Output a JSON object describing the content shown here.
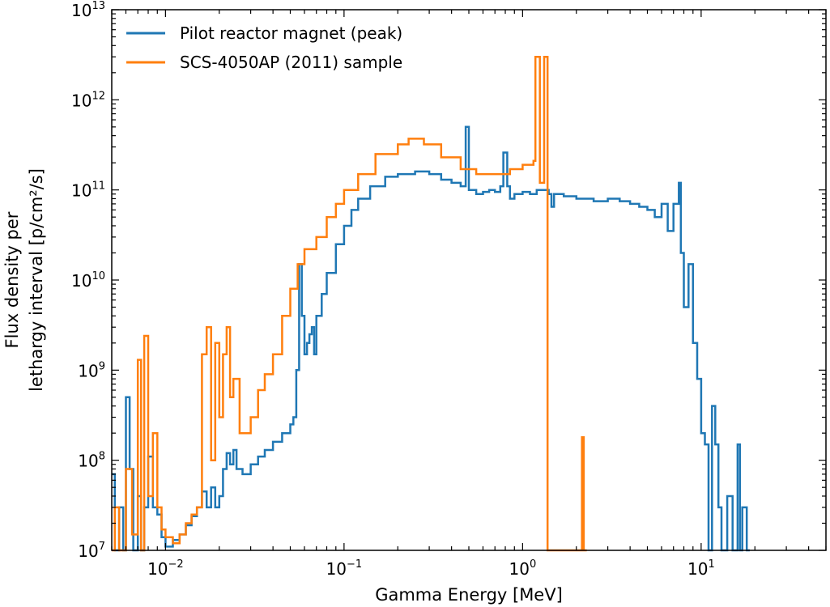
{
  "chart_data": {
    "type": "line",
    "xlabel": "Gamma Energy [MeV]",
    "ylabel_line1": "Flux density per",
    "ylabel_line2": "lethargy interval [p/cm²/s]",
    "xscale": "log",
    "yscale": "log",
    "xlim": [
      0.005,
      50
    ],
    "ylim": [
      10000000.0,
      10000000000000.0
    ],
    "grid": false,
    "legend_position": "top-left",
    "x_ticks": [
      {
        "value": 0.01,
        "base": "10",
        "exp": "−2"
      },
      {
        "value": 0.1,
        "base": "10",
        "exp": "−1"
      },
      {
        "value": 1,
        "base": "10",
        "exp": "0"
      },
      {
        "value": 10,
        "base": "10",
        "exp": "1"
      }
    ],
    "y_ticks": [
      {
        "value": 10000000.0,
        "base": "10",
        "exp": "7"
      },
      {
        "value": 100000000.0,
        "base": "10",
        "exp": "8"
      },
      {
        "value": 1000000000.0,
        "base": "10",
        "exp": "9"
      },
      {
        "value": 10000000000.0,
        "base": "10",
        "exp": "10"
      },
      {
        "value": 100000000000.0,
        "base": "10",
        "exp": "11"
      },
      {
        "value": 1000000000000.0,
        "base": "10",
        "exp": "12"
      },
      {
        "value": 10000000000000.0,
        "base": "10",
        "exp": "13"
      }
    ],
    "series": [
      {
        "name": "Pilot reactor magnet (peak)",
        "color": "#1f77b4",
        "points": [
          [
            0.005,
            70000000.0
          ],
          [
            0.0052,
            10000000.0
          ],
          [
            0.0055,
            30000000.0
          ],
          [
            0.0058,
            10000000.0
          ],
          [
            0.006,
            500000000.0
          ],
          [
            0.0063,
            80000000.0
          ],
          [
            0.0066,
            10000000.0
          ],
          [
            0.007,
            40000000.0
          ],
          [
            0.0073,
            10000000.0
          ],
          [
            0.0076,
            30000000.0
          ],
          [
            0.008,
            110000000.0
          ],
          [
            0.0085,
            30000000.0
          ],
          [
            0.009,
            25000000.0
          ],
          [
            0.0095,
            14000000.0
          ],
          [
            0.01,
            11000000.0
          ],
          [
            0.011,
            13000000.0
          ],
          [
            0.012,
            15000000.0
          ],
          [
            0.013,
            19000000.0
          ],
          [
            0.014,
            24000000.0
          ],
          [
            0.015,
            30000000.0
          ],
          [
            0.016,
            45000000.0
          ],
          [
            0.017,
            30000000.0
          ],
          [
            0.018,
            50000000.0
          ],
          [
            0.019,
            30000000.0
          ],
          [
            0.02,
            40000000.0
          ],
          [
            0.021,
            80000000.0
          ],
          [
            0.022,
            120000000.0
          ],
          [
            0.023,
            90000000.0
          ],
          [
            0.024,
            130000000.0
          ],
          [
            0.025,
            80000000.0
          ],
          [
            0.027,
            70000000.0
          ],
          [
            0.03,
            90000000.0
          ],
          [
            0.033,
            110000000.0
          ],
          [
            0.036,
            130000000.0
          ],
          [
            0.04,
            160000000.0
          ],
          [
            0.045,
            200000000.0
          ],
          [
            0.05,
            250000000.0
          ],
          [
            0.052,
            300000000.0
          ],
          [
            0.054,
            1000000000.0
          ],
          [
            0.056,
            15000000000.0
          ],
          [
            0.058,
            4000000000.0
          ],
          [
            0.06,
            1500000000.0
          ],
          [
            0.062,
            2000000000.0
          ],
          [
            0.064,
            2500000000.0
          ],
          [
            0.066,
            3000000000.0
          ],
          [
            0.068,
            1500000000.0
          ],
          [
            0.07,
            4000000000.0
          ],
          [
            0.075,
            7000000000.0
          ],
          [
            0.08,
            12000000000.0
          ],
          [
            0.09,
            25000000000.0
          ],
          [
            0.1,
            40000000000.0
          ],
          [
            0.11,
            60000000000.0
          ],
          [
            0.12,
            80000000000.0
          ],
          [
            0.14,
            110000000000.0
          ],
          [
            0.17,
            140000000000.0
          ],
          [
            0.2,
            150000000000.0
          ],
          [
            0.25,
            160000000000.0
          ],
          [
            0.3,
            150000000000.0
          ],
          [
            0.35,
            130000000000.0
          ],
          [
            0.4,
            120000000000.0
          ],
          [
            0.45,
            110000000000.0
          ],
          [
            0.48,
            500000000000.0
          ],
          [
            0.5,
            100000000000.0
          ],
          [
            0.55,
            90000000000.0
          ],
          [
            0.6,
            95000000000.0
          ],
          [
            0.65,
            100000000000.0
          ],
          [
            0.7,
            95000000000.0
          ],
          [
            0.75,
            110000000000.0
          ],
          [
            0.78,
            260000000000.0
          ],
          [
            0.82,
            110000000000.0
          ],
          [
            0.85,
            80000000000.0
          ],
          [
            0.9,
            90000000000.0
          ],
          [
            1.0,
            95000000000.0
          ],
          [
            1.1,
            90000000000.0
          ],
          [
            1.2,
            100000000000.0
          ],
          [
            1.3,
            100000000000.0
          ],
          [
            1.4,
            90000000000.0
          ],
          [
            1.45,
            65000000000.0
          ],
          [
            1.5,
            90000000000.0
          ],
          [
            1.7,
            85000000000.0
          ],
          [
            2.0,
            80000000000.0
          ],
          [
            2.5,
            75000000000.0
          ],
          [
            3.0,
            80000000000.0
          ],
          [
            3.5,
            75000000000.0
          ],
          [
            4.0,
            70000000000.0
          ],
          [
            4.5,
            65000000000.0
          ],
          [
            5.0,
            60000000000.0
          ],
          [
            5.5,
            50000000000.0
          ],
          [
            6.0,
            70000000000.0
          ],
          [
            6.5,
            35000000000.0
          ],
          [
            7.0,
            70000000000.0
          ],
          [
            7.5,
            120000000000.0
          ],
          [
            7.7,
            20000000000.0
          ],
          [
            8.0,
            5000000000.0
          ],
          [
            8.5,
            15000000000.0
          ],
          [
            9.0,
            2000000000.0
          ],
          [
            9.5,
            800000000.0
          ],
          [
            10.0,
            200000000.0
          ],
          [
            10.5,
            150000000.0
          ],
          [
            11.0,
            10000000.0
          ],
          [
            11.5,
            400000000.0
          ],
          [
            12.0,
            150000000.0
          ],
          [
            12.5,
            30000000.0
          ],
          [
            13.0,
            10000000.0
          ],
          [
            14.0,
            40000000.0
          ],
          [
            15.0,
            10000000.0
          ],
          [
            16.0,
            150000000.0
          ],
          [
            16.5,
            10000000.0
          ],
          [
            17.0,
            30000000.0
          ],
          [
            18.0,
            10000000.0
          ]
        ]
      },
      {
        "name": "SCS-4050AP (2011) sample",
        "color": "#ff7f0e",
        "points": [
          [
            0.005,
            10000000.0
          ],
          [
            0.0052,
            30000000.0
          ],
          [
            0.0055,
            10000000.0
          ],
          [
            0.006,
            80000000.0
          ],
          [
            0.0065,
            15000000.0
          ],
          [
            0.007,
            1300000000.0
          ],
          [
            0.0073,
            10000000.0
          ],
          [
            0.0076,
            2400000000.0
          ],
          [
            0.008,
            40000000.0
          ],
          [
            0.0085,
            200000000.0
          ],
          [
            0.009,
            30000000.0
          ],
          [
            0.0095,
            17000000.0
          ],
          [
            0.01,
            14000000.0
          ],
          [
            0.011,
            12000000.0
          ],
          [
            0.012,
            15000000.0
          ],
          [
            0.013,
            20000000.0
          ],
          [
            0.014,
            25000000.0
          ],
          [
            0.015,
            30000000.0
          ],
          [
            0.016,
            1500000000.0
          ],
          [
            0.017,
            3000000000.0
          ],
          [
            0.018,
            100000000.0
          ],
          [
            0.019,
            2000000000.0
          ],
          [
            0.02,
            300000000.0
          ],
          [
            0.021,
            1500000000.0
          ],
          [
            0.022,
            3000000000.0
          ],
          [
            0.023,
            500000000.0
          ],
          [
            0.024,
            800000000.0
          ],
          [
            0.026,
            200000000.0
          ],
          [
            0.03,
            300000000.0
          ],
          [
            0.033,
            600000000.0
          ],
          [
            0.036,
            900000000.0
          ],
          [
            0.04,
            1500000000.0
          ],
          [
            0.045,
            4000000000.0
          ],
          [
            0.05,
            8000000000.0
          ],
          [
            0.055,
            15000000000.0
          ],
          [
            0.06,
            22000000000.0
          ],
          [
            0.07,
            30000000000.0
          ],
          [
            0.08,
            50000000000.0
          ],
          [
            0.09,
            70000000000.0
          ],
          [
            0.1,
            100000000000.0
          ],
          [
            0.12,
            150000000000.0
          ],
          [
            0.15,
            250000000000.0
          ],
          [
            0.2,
            320000000000.0
          ],
          [
            0.23,
            370000000000.0
          ],
          [
            0.28,
            320000000000.0
          ],
          [
            0.35,
            230000000000.0
          ],
          [
            0.45,
            170000000000.0
          ],
          [
            0.55,
            150000000000.0
          ],
          [
            0.7,
            150000000000.0
          ],
          [
            0.85,
            170000000000.0
          ],
          [
            1.0,
            190000000000.0
          ],
          [
            1.15,
            210000000000.0
          ],
          [
            1.18,
            3000000000000.0
          ],
          [
            1.25,
            120000000000.0
          ],
          [
            1.32,
            3000000000000.0
          ],
          [
            1.38,
            10000000.0
          ],
          [
            2.1,
            10000000.0
          ],
          [
            2.15,
            180000000.0
          ],
          [
            2.2,
            10000000.0
          ]
        ]
      }
    ]
  }
}
